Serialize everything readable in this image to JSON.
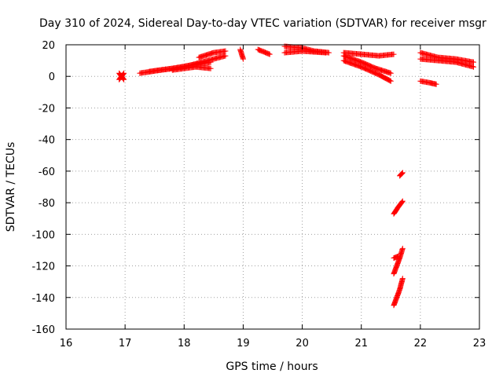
{
  "chart_data": {
    "type": "scatter",
    "title": "Day 310 of 2024, Sidereal Day-to-day VTEC variation (SDTVAR) for receiver msgr",
    "xlabel": "GPS time / hours",
    "ylabel": "SDTVAR / TECUs",
    "xlim": [
      16,
      23
    ],
    "ylim": [
      -160,
      20
    ],
    "x_ticks": [
      "16",
      "17",
      "18",
      "19",
      "20",
      "21",
      "22",
      "23"
    ],
    "y_ticks": [
      "-160",
      "-140",
      "-120",
      "-100",
      "-80",
      "-60",
      "-40",
      "-20",
      "0",
      "20"
    ],
    "grid": true,
    "legend": "none",
    "marker": "plus",
    "color": "#ff0000",
    "segments": [
      {
        "x": [
          16.9,
          16.98
        ],
        "y": [
          2,
          -2
        ]
      },
      {
        "x": [
          16.9,
          16.98
        ],
        "y": [
          -2,
          2
        ]
      },
      {
        "x": [
          17.25,
          17.6,
          18.0,
          18.3,
          18.7
        ],
        "y": [
          2,
          4,
          6,
          9,
          13
        ]
      },
      {
        "x": [
          17.4,
          17.8,
          18.1,
          18.45
        ],
        "y": [
          3,
          5,
          7,
          9
        ]
      },
      {
        "x": [
          17.8,
          18.0,
          18.2,
          18.45
        ],
        "y": [
          4,
          5,
          6,
          5
        ]
      },
      {
        "x": [
          18.25,
          18.5,
          18.7
        ],
        "y": [
          12,
          15,
          16
        ]
      },
      {
        "x": [
          18.95,
          19.0
        ],
        "y": [
          17,
          11
        ]
      },
      {
        "x": [
          19.25,
          19.45
        ],
        "y": [
          17,
          14
        ]
      },
      {
        "x": [
          19.7,
          20.0,
          20.2,
          20.45
        ],
        "y": [
          19,
          18,
          16,
          15
        ]
      },
      {
        "x": [
          19.7,
          20.0,
          20.4
        ],
        "y": [
          15,
          16,
          15
        ]
      },
      {
        "x": [
          20.7,
          21.0,
          21.3,
          21.55
        ],
        "y": [
          15,
          14,
          13,
          14
        ]
      },
      {
        "x": [
          20.7,
          21.0,
          21.25,
          21.5
        ],
        "y": [
          13,
          9,
          5,
          2
        ]
      },
      {
        "x": [
          20.7,
          21.0,
          21.3,
          21.5
        ],
        "y": [
          10,
          6,
          1,
          -3
        ]
      },
      {
        "x": [
          22.0,
          22.3,
          22.6,
          22.9
        ],
        "y": [
          15,
          12,
          11,
          9
        ]
      },
      {
        "x": [
          22.0,
          22.3,
          22.6,
          22.9
        ],
        "y": [
          11,
          10,
          9,
          6
        ]
      },
      {
        "x": [
          22.0,
          22.15,
          22.27
        ],
        "y": [
          -3,
          -4,
          -5
        ]
      },
      {
        "x": [
          21.65,
          21.7
        ],
        "y": [
          -63,
          -61
        ]
      },
      {
        "x": [
          21.55,
          21.62,
          21.7
        ],
        "y": [
          -87,
          -83,
          -79
        ]
      },
      {
        "x": [
          21.55,
          21.6,
          21.65,
          21.7
        ],
        "y": [
          -125,
          -120,
          -115,
          -109
        ]
      },
      {
        "x": [
          21.55,
          21.62
        ],
        "y": [
          -115,
          -114
        ]
      },
      {
        "x": [
          21.55,
          21.6,
          21.65,
          21.7
        ],
        "y": [
          -145,
          -140,
          -135,
          -128
        ]
      }
    ]
  }
}
